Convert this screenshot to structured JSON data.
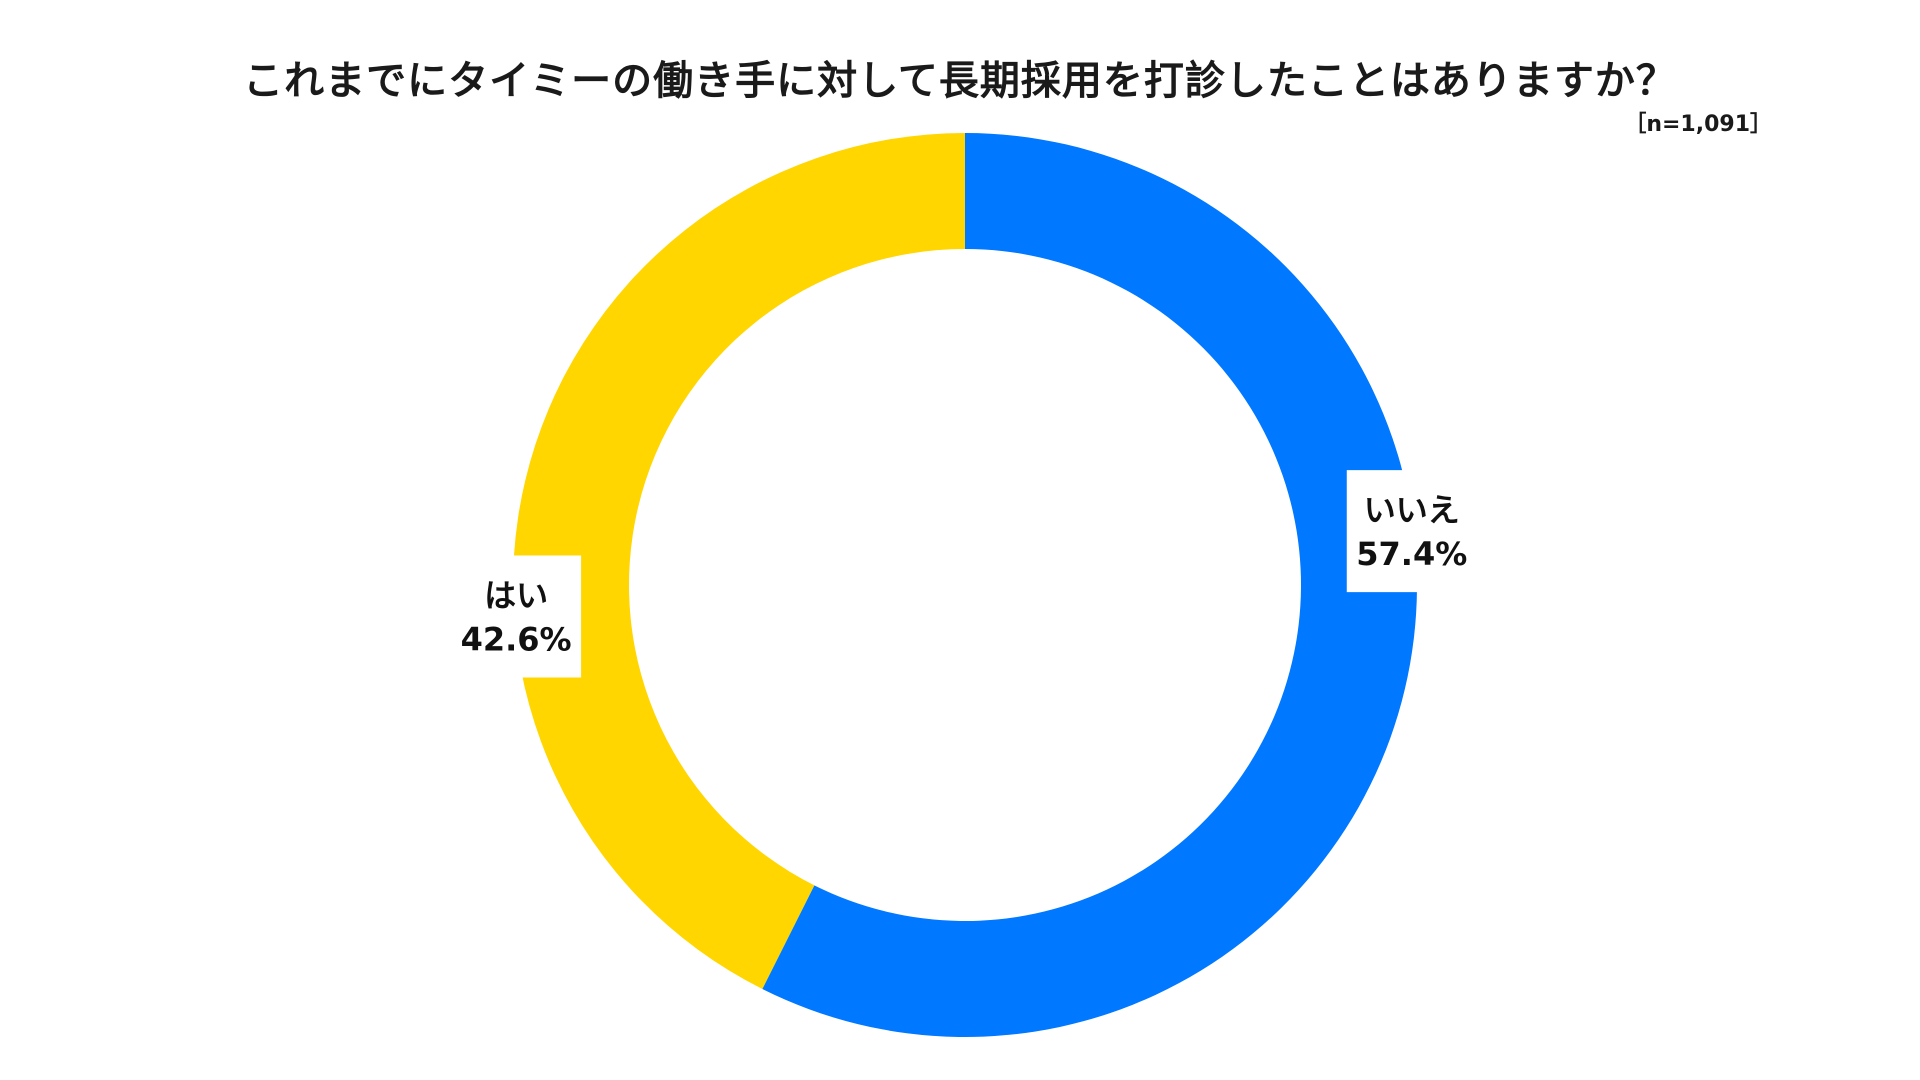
{
  "chart_data": {
    "type": "pie",
    "title": "これまでにタイミーの働き手に対して長期採用を打診したことはありますか？",
    "subtitle": "［n=1,091］",
    "donut": true,
    "start_angle_deg": 0,
    "direction": "clockwise",
    "slices": [
      {
        "label": "いいえ",
        "value": 57.4,
        "value_label": "57.4%",
        "color": "#0078FF"
      },
      {
        "label": "はい",
        "value": 42.6,
        "value_label": "42.6%",
        "color": "#FFD600"
      }
    ]
  }
}
